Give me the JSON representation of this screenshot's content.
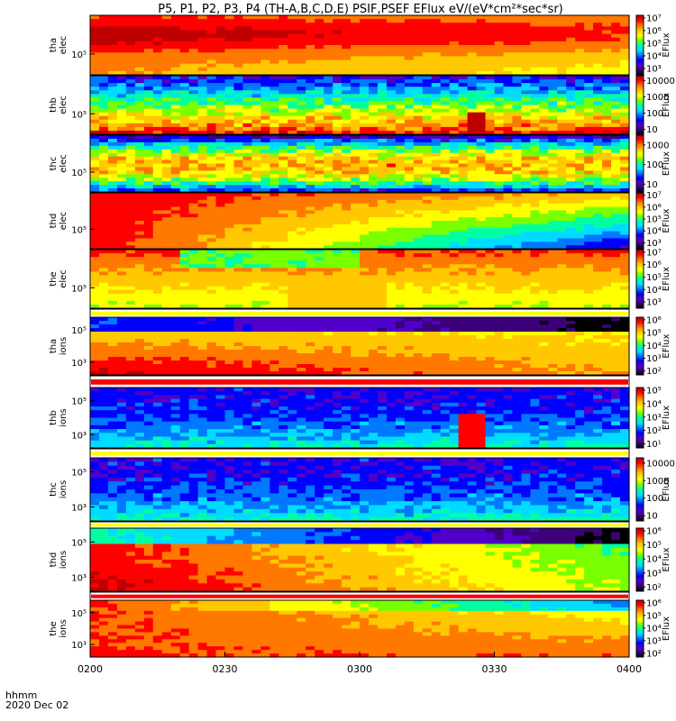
{
  "chart_data": {
    "type": "heatmap",
    "title": "P5, P1, P2, P3, P4 (TH-A,B,C,D,E) PSIF,PSEF EFlux eV/(eV*cm²*sec*sr)",
    "x_ticks": [
      "0200",
      "0230",
      "0300",
      "0330",
      "0400"
    ],
    "x_range": [
      "0200",
      "0400"
    ],
    "x_unit_label": "hhmm",
    "date_label": "2020 Dec 02",
    "colorbar_label": "EFlux",
    "panels": [
      {
        "label": "tha elec",
        "y_ticks": [
          "10⁵"
        ],
        "cbar_ticks": [
          "10⁷",
          "10⁶",
          "10⁵",
          "10⁴",
          "10³"
        ],
        "cbar_log_range": [
          2.5,
          7.2
        ]
      },
      {
        "label": "thb elec",
        "y_ticks": [
          "10⁵"
        ],
        "cbar_ticks": [
          "10000",
          "1000",
          "100",
          "10"
        ],
        "cbar_log_range": [
          0.7,
          4.3
        ]
      },
      {
        "label": "thc elec",
        "y_ticks": [
          "10⁵"
        ],
        "cbar_ticks": [
          "1000",
          "100",
          "10"
        ],
        "cbar_log_range": [
          0.6,
          3.5
        ]
      },
      {
        "label": "thd elec",
        "y_ticks": [
          "10⁵"
        ],
        "cbar_ticks": [
          "10⁷",
          "10⁶",
          "10⁵",
          "10⁴",
          "10³"
        ],
        "cbar_log_range": [
          2.5,
          7.2
        ]
      },
      {
        "label": "the elec",
        "y_ticks": [
          "10⁵"
        ],
        "cbar_ticks": [
          "10⁷",
          "10⁶",
          "10⁵",
          "10⁴",
          "10³"
        ],
        "cbar_log_range": [
          2.5,
          7.2
        ]
      },
      {
        "label": "tha ions",
        "y_ticks": [
          "10⁵",
          "10³"
        ],
        "cbar_ticks": [
          "10⁶",
          "10⁵",
          "10⁴",
          "10³",
          "10²"
        ],
        "cbar_log_range": [
          1.7,
          6.2
        ]
      },
      {
        "label": "thb ions",
        "y_ticks": [
          "10⁵",
          "10³"
        ],
        "cbar_ticks": [
          "10⁵",
          "10⁴",
          "10³",
          "10²",
          "10¹"
        ],
        "cbar_log_range": [
          0.7,
          5.2
        ]
      },
      {
        "label": "thc ions",
        "y_ticks": [
          "10⁵",
          "10³"
        ],
        "cbar_ticks": [
          "10000",
          "1000",
          "100",
          "10"
        ],
        "cbar_log_range": [
          0.7,
          4.3
        ]
      },
      {
        "label": "thd ions",
        "y_ticks": [
          "10⁵",
          "10³"
        ],
        "cbar_ticks": [
          "10⁶",
          "10⁵",
          "10⁴",
          "10³",
          "10²"
        ],
        "cbar_log_range": [
          1.7,
          6.2
        ]
      },
      {
        "label": "the ions",
        "y_ticks": [
          "10⁵",
          "10³"
        ],
        "cbar_ticks": [
          "10⁶",
          "10⁵",
          "10⁴",
          "10³",
          "10²"
        ],
        "cbar_log_range": [
          1.7,
          6.2
        ]
      }
    ],
    "colormap": [
      "#000000",
      "#3c0078",
      "#5000c8",
      "#0000ff",
      "#0078ff",
      "#00dcff",
      "#00ffa0",
      "#78ff00",
      "#ffff00",
      "#ffc800",
      "#ff7800",
      "#ff0000",
      "#be0000"
    ]
  }
}
